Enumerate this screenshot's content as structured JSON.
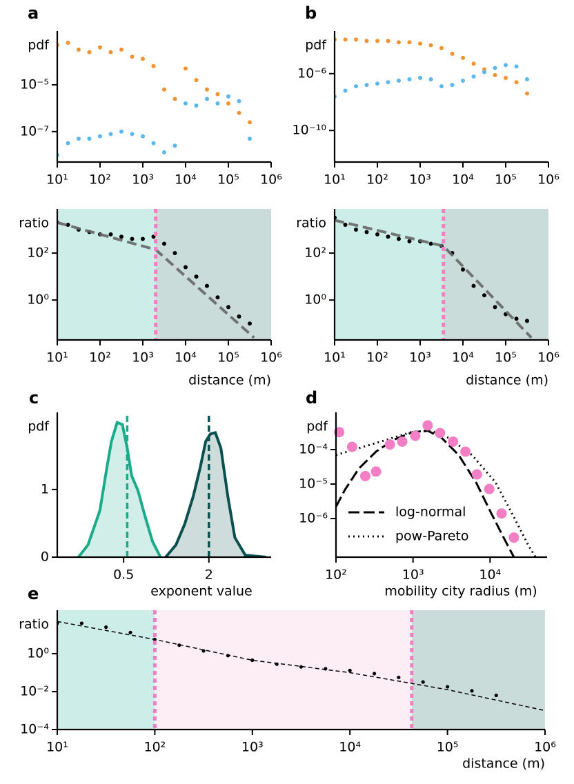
{
  "chart_data": [
    {
      "type": "scatter",
      "label": "a",
      "ylabel": "pdf",
      "xlog": true,
      "ylog": true,
      "xlim": [
        10,
        1000000
      ],
      "ylim": [
        5e-09,
        0.002
      ],
      "xticks": [
        {
          "value": 10,
          "label": "10¹"
        },
        {
          "value": 100,
          "label": "10²"
        },
        {
          "value": 1000,
          "label": "10³"
        },
        {
          "value": 10000,
          "label": "10⁴"
        },
        {
          "value": 100000,
          "label": "10⁵"
        },
        {
          "value": 1000000,
          "label": "10⁶"
        }
      ],
      "yticks": [
        {
          "value": 1e-07,
          "label": "10⁻⁷"
        },
        {
          "value": 1e-05,
          "label": "10⁻⁵"
        }
      ],
      "series": [
        {
          "color": "#f39230",
          "kind": "dots",
          "x": [
            10,
            17.8,
            31.6,
            56.2,
            100,
            178,
            316,
            562,
            1000,
            1780,
            3160,
            5620,
            10000,
            17800,
            31600,
            56200,
            100000,
            178000,
            316000
          ],
          "values": [
            0.0005,
            0.00063,
            0.00032,
            0.00025,
            0.0004,
            0.00025,
            0.00032,
            0.00016,
            0.00013,
            6.3e-05,
            6.3e-06,
            2.5e-06,
            5e-05,
            1.6e-05,
            6.3e-06,
            4e-06,
            1.6e-06,
            6.3e-07,
            2.5e-07
          ]
        },
        {
          "color": "#5bb8ec",
          "kind": "dots",
          "x": [
            10,
            17.8,
            31.6,
            56.2,
            100,
            178,
            316,
            562,
            1000,
            1780,
            3160,
            5620,
            10000,
            17800,
            31600,
            56200,
            100000,
            178000,
            316000
          ],
          "values": [
            1e-08,
            3.2e-08,
            5e-08,
            5e-08,
            6.3e-08,
            7.9e-08,
            1e-07,
            7.9e-08,
            6.3e-08,
            3.2e-08,
            1.3e-08,
            2.5e-08,
            1.6e-06,
            1.3e-06,
            2.5e-06,
            1.6e-06,
            3.2e-06,
            2e-06,
            5e-08
          ]
        }
      ]
    },
    {
      "type": "scatter",
      "label": "b",
      "ylabel": "pdf",
      "xlog": true,
      "ylog": true,
      "xlim": [
        10,
        1000000
      ],
      "ylim": [
        6e-13,
        0.001
      ],
      "xticks": [
        {
          "value": 10,
          "label": "10¹"
        },
        {
          "value": 100,
          "label": "10²"
        },
        {
          "value": 1000,
          "label": "10³"
        },
        {
          "value": 10000,
          "label": "10⁴"
        },
        {
          "value": 100000,
          "label": "10⁵"
        },
        {
          "value": 1000000,
          "label": "10⁶"
        }
      ],
      "yticks": [
        {
          "value": 1e-10,
          "label": "10⁻¹⁰"
        },
        {
          "value": 1e-06,
          "label": "10⁻⁶"
        }
      ],
      "series": [
        {
          "color": "#f39230",
          "kind": "dots",
          "x": [
            10,
            17.8,
            31.6,
            56.2,
            100,
            178,
            316,
            562,
            1000,
            1780,
            3160,
            5620,
            10000,
            17800,
            31600,
            56200,
            100000,
            178000,
            316000
          ],
          "values": [
            0.00025,
            0.00025,
            0.00025,
            0.0002,
            0.0002,
            0.0002,
            0.00016,
            0.00016,
            0.00013,
            0.0001,
            6.3e-05,
            2.5e-05,
            1.3e-05,
            5e-06,
            2e-06,
            7.9e-07,
            5e-07,
            2.5e-07,
            4e-08
          ]
        },
        {
          "color": "#5bb8ec",
          "kind": "dots",
          "x": [
            10,
            17.8,
            31.6,
            56.2,
            100,
            178,
            316,
            562,
            1000,
            1780,
            3160,
            5620,
            10000,
            17800,
            31600,
            56200,
            100000,
            178000,
            316000
          ],
          "values": [
            2.5e-08,
            6.3e-08,
            1.3e-07,
            1.6e-07,
            2e-07,
            2.5e-07,
            3.2e-07,
            4e-07,
            5e-07,
            4e-07,
            1.3e-07,
            1.6e-07,
            3.2e-07,
            6.3e-07,
            1.3e-06,
            2.5e-06,
            4e-06,
            3.2e-06,
            4e-07
          ]
        }
      ]
    },
    {
      "type": "scatter",
      "ylabel": "ratio",
      "xlabel": "distance (m)",
      "xlog": true,
      "ylog": true,
      "xlim": [
        10,
        1000000
      ],
      "ylim": [
        0.02,
        7600
      ],
      "xticks": [
        {
          "value": 10,
          "label": "10¹"
        },
        {
          "value": 100,
          "label": "10²"
        },
        {
          "value": 1000,
          "label": "10³"
        },
        {
          "value": 10000,
          "label": "10⁴"
        },
        {
          "value": 100000,
          "label": "10⁵"
        },
        {
          "value": 1000000,
          "label": "10⁶"
        }
      ],
      "yticks": [
        {
          "value": 1,
          "label": "10⁰"
        },
        {
          "value": 100,
          "label": "10²"
        }
      ],
      "thresholds": [
        2000
      ],
      "threshold_color": "#f27ec4",
      "region_colors": [
        "#cdeee8",
        "#c9dcd9"
      ],
      "series": [
        {
          "color": "#000000",
          "kind": "dots",
          "x": [
            10,
            17.8,
            31.6,
            56.2,
            100,
            178,
            316,
            562,
            1000,
            1780,
            3160,
            5620,
            10000,
            17800,
            31600,
            56200,
            100000,
            178000,
            316000
          ],
          "values": [
            2000,
            1600,
            1000,
            790,
            630,
            630,
            500,
            400,
            400,
            500,
            250,
            100,
            25,
            10,
            4.0,
            1.3,
            0.5,
            0.2,
            0.1
          ]
        },
        {
          "color": "#666666",
          "kind": "dashed-thick",
          "x": [
            10,
            2000,
            400000
          ],
          "values": [
            2000,
            140,
            0.025
          ]
        }
      ]
    },
    {
      "type": "scatter",
      "ylabel": "ratio",
      "xlabel": "distance (m)",
      "xlog": true,
      "ylog": true,
      "xlim": [
        10,
        1000000
      ],
      "ylim": [
        0.02,
        7600
      ],
      "xticks": [
        {
          "value": 10,
          "label": "10¹"
        },
        {
          "value": 100,
          "label": "10²"
        },
        {
          "value": 1000,
          "label": "10³"
        },
        {
          "value": 10000,
          "label": "10⁴"
        },
        {
          "value": 100000,
          "label": "10⁵"
        },
        {
          "value": 1000000,
          "label": "10⁶"
        }
      ],
      "yticks": [
        {
          "value": 1,
          "label": "10⁰"
        },
        {
          "value": 100,
          "label": "10²"
        }
      ],
      "thresholds": [
        3500
      ],
      "threshold_color": "#f27ec4",
      "region_colors": [
        "#cdeee8",
        "#c9dcd9"
      ],
      "series": [
        {
          "color": "#000000",
          "kind": "dots",
          "x": [
            10,
            17.8,
            31.6,
            56.2,
            100,
            178,
            316,
            562,
            1000,
            1780,
            3160,
            5620,
            10000,
            17800,
            31600,
            56200,
            100000,
            178000,
            316000
          ],
          "values": [
            3200,
            1600,
            1000,
            790,
            630,
            500,
            400,
            320,
            320,
            250,
            200,
            100,
            20,
            4.0,
            1.6,
            0.5,
            0.25,
            0.16,
            0.13
          ]
        },
        {
          "color": "#666666",
          "kind": "dashed-thick",
          "x": [
            10,
            3500,
            400000
          ],
          "values": [
            2500,
            200,
            0.025
          ]
        }
      ]
    },
    {
      "type": "line",
      "label": "c",
      "ylabel": "pdf",
      "xlabel": "exponent value",
      "xlog": true,
      "ylog": false,
      "xlim": [
        0.17,
        5.5
      ],
      "ylim": [
        0,
        2.14
      ],
      "xticks": [
        0.5,
        2
      ],
      "yticks": [
        0,
        1
      ],
      "series": [
        {
          "color": "#1aab8a",
          "kind": "area",
          "mean": 0.53,
          "x": [
            0.24,
            0.28,
            0.34,
            0.38,
            0.41,
            0.45,
            0.49,
            0.53,
            0.57,
            0.63,
            0.7,
            0.8,
            0.91
          ],
          "values": [
            0,
            0.18,
            0.69,
            1.31,
            1.71,
            1.99,
            1.96,
            1.61,
            1.2,
            0.99,
            0.64,
            0.23,
            0
          ]
        },
        {
          "color": "#0b4f4f",
          "kind": "area",
          "mean": 2.0,
          "x": [
            0.99,
            1.17,
            1.35,
            1.55,
            1.73,
            1.9,
            2.05,
            2.22,
            2.43,
            2.72,
            3.05,
            3.61,
            5.07
          ],
          "values": [
            0,
            0.18,
            0.49,
            0.9,
            1.31,
            1.71,
            1.82,
            1.84,
            1.61,
            0.9,
            0.29,
            0.03,
            0
          ]
        }
      ]
    },
    {
      "type": "scatter",
      "label": "d",
      "ylabel": "pdf",
      "xlabel": "mobility city radius (m)",
      "xlog": true,
      "ylog": true,
      "xlim": [
        100,
        55000
      ],
      "ylim": [
        7.6e-08,
        0.0012
      ],
      "xticks": [
        {
          "value": 100,
          "label": "10²"
        },
        {
          "value": 1000,
          "label": "10³"
        },
        {
          "value": 10000,
          "label": "10⁴"
        }
      ],
      "yticks": [
        {
          "value": 1e-06,
          "label": "10⁻⁶"
        },
        {
          "value": 1e-05,
          "label": "10⁻⁵"
        },
        {
          "value": 0.0001,
          "label": "10⁻⁴"
        }
      ],
      "legend": "lower left",
      "series": [
        {
          "color": "#f27ec4",
          "kind": "big-dots",
          "x": [
            110,
            162,
            240,
            331,
            501,
            724,
            1070,
            1550,
            2240,
            3310,
            4790,
            6760,
            9770,
            14100,
            20400
          ],
          "values": [
            0.00032,
            0.00012,
            1.7e-05,
            2.3e-05,
            0.00014,
            0.00017,
            0.00025,
            0.0005,
            0.0003,
            0.00017,
            8.7e-05,
            1.9e-05,
            7.2e-06,
            1.4e-06,
            2.8e-07
          ]
        },
        {
          "name": "log-normal",
          "color": "#000000",
          "kind": "dashed",
          "x": [
            100,
            131,
            198,
            331,
            556,
            991,
            1560,
            2350,
            3920,
            6600,
            9950,
            15000,
            20400
          ],
          "values": [
            2.2e-06,
            6.9e-06,
            2.8e-05,
            8.7e-05,
            0.00019,
            0.00032,
            0.00035,
            0.00022,
            6.9e-05,
            1.1e-05,
            1.7e-06,
            2.8e-07,
            7.6e-08
          ]
        },
        {
          "name": "pow-Pareto",
          "color": "#000000",
          "kind": "dotted",
          "x": [
            100,
            198,
            451,
            991,
            1720,
            2900,
            5830,
            11800,
            20400,
            31300,
            39000
          ],
          "values": [
            6.9e-05,
            0.00011,
            0.00019,
            0.00033,
            0.00035,
            0.00022,
            6.9e-05,
            1.1e-05,
            1.1e-06,
            1.7e-07,
            7.6e-08
          ]
        }
      ]
    },
    {
      "type": "scatter",
      "label": "e",
      "ylabel": "ratio",
      "xlabel": "distance (m)",
      "xlog": true,
      "ylog": true,
      "xlim": [
        10,
        1000000
      ],
      "ylim": [
        0.0001,
        195
      ],
      "xticks": [
        {
          "value": 10,
          "label": "10¹"
        },
        {
          "value": 100,
          "label": "10²"
        },
        {
          "value": 1000,
          "label": "10³"
        },
        {
          "value": 10000,
          "label": "10⁴"
        },
        {
          "value": 100000,
          "label": "10⁵"
        },
        {
          "value": 1000000,
          "label": "10⁶"
        }
      ],
      "yticks": [
        {
          "value": 0.0001,
          "label": "10⁻⁴"
        },
        {
          "value": 0.01,
          "label": "10⁻²"
        },
        {
          "value": 1,
          "label": "10⁰"
        }
      ],
      "thresholds": [
        100,
        43000
      ],
      "threshold_color": "#f27ec4",
      "region_colors": [
        "#cdeee8",
        "#fdeef6",
        "#c9dcd9"
      ],
      "series": [
        {
          "color": "#000000",
          "kind": "small-dots",
          "x": [
            10,
            17.8,
            31.6,
            56.2,
            100,
            178,
            316,
            562,
            1000,
            1780,
            3160,
            5620,
            10000,
            17800,
            31600,
            56200,
            100000,
            178000,
            316000
          ],
          "values": [
            40,
            40,
            25,
            13,
            5.6,
            2.8,
            1.4,
            0.79,
            0.45,
            0.28,
            0.2,
            0.16,
            0.13,
            0.089,
            0.056,
            0.032,
            0.018,
            0.011,
            0.0063
          ]
        },
        {
          "color": "#000000",
          "kind": "dashed-thin",
          "x": [
            10,
            100,
            1000,
            10000,
            100000,
            1000000
          ],
          "values": [
            50,
            5.6,
            0.45,
            0.1,
            0.0126,
            0.001
          ]
        }
      ]
    }
  ]
}
